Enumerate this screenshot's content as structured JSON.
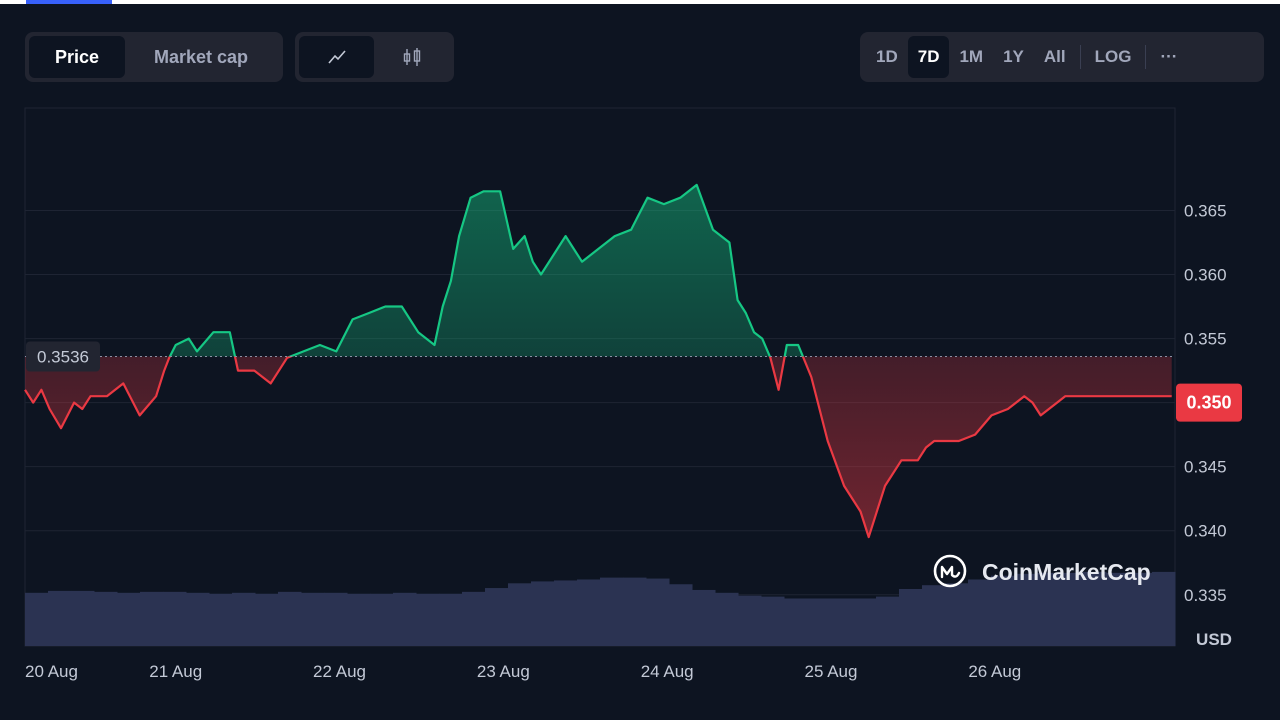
{
  "toolbar": {
    "metric_tabs": [
      {
        "label": "Price",
        "active": true
      },
      {
        "label": "Market cap",
        "active": false
      }
    ],
    "chart_types": [
      {
        "icon": "line-chart-icon",
        "active": true
      },
      {
        "icon": "candlestick-icon",
        "active": false
      }
    ],
    "ranges": [
      {
        "label": "1D",
        "active": false
      },
      {
        "label": "7D",
        "active": true
      },
      {
        "label": "1M",
        "active": false
      },
      {
        "label": "1Y",
        "active": false
      },
      {
        "label": "All",
        "active": false
      }
    ],
    "log_label": "LOG",
    "more_label": "···"
  },
  "watermark": "CoinMarketCap",
  "colors": {
    "up": "#16c784",
    "down": "#ea3943",
    "background": "#0d1421",
    "volume": "#2b3352",
    "current_badge": "#ea3943"
  },
  "chart_data": {
    "type": "area",
    "currency_label": "USD",
    "baseline_value": 0.3536,
    "baseline_label": "0.3536",
    "current_value": 0.35,
    "current_label": "0.350",
    "ylim": [
      0.331,
      0.373
    ],
    "y_ticks": [
      0.365,
      0.36,
      0.355,
      0.35,
      0.345,
      0.34,
      0.335
    ],
    "y_tick_labels": [
      "0.365",
      "0.360",
      "0.355",
      "0.350",
      "0.345",
      "0.340",
      "0.335"
    ],
    "xlim": [
      0,
      7.02
    ],
    "x_ticks": [
      0,
      0.92,
      1.92,
      2.92,
      3.92,
      4.92,
      5.92
    ],
    "x_tick_labels": [
      "20 Aug",
      "21 Aug",
      "22 Aug",
      "23 Aug",
      "24 Aug",
      "25 Aug",
      "26 Aug"
    ],
    "series": [
      {
        "x": [
          0,
          0.05,
          0.1,
          0.15,
          0.22,
          0.3,
          0.35,
          0.4,
          0.5,
          0.6,
          0.7,
          0.8,
          0.85,
          0.88,
          0.92,
          1.0,
          1.05,
          1.15,
          1.25,
          1.3,
          1.4,
          1.5,
          1.6,
          1.7,
          1.8,
          1.9,
          2.0,
          2.1,
          2.2,
          2.3,
          2.4,
          2.5,
          2.55,
          2.6,
          2.65,
          2.72,
          2.8,
          2.9,
          2.98,
          3.05,
          3.1,
          3.15,
          3.25,
          3.3,
          3.4,
          3.5,
          3.6,
          3.7,
          3.8,
          3.9,
          4.0,
          4.1,
          4.2,
          4.3,
          4.35,
          4.4,
          4.45,
          4.5,
          4.55,
          4.6,
          4.65,
          4.72,
          4.8,
          4.85,
          4.9,
          5.0,
          5.1,
          5.15,
          5.25,
          5.35,
          5.45,
          5.5,
          5.55,
          5.7,
          5.8,
          5.9,
          6.0,
          6.05,
          6.1,
          6.15,
          6.2,
          6.25,
          6.3,
          6.35,
          6.4,
          6.5,
          6.6,
          6.7,
          6.8,
          6.9,
          7.0
        ],
        "y": [
          0.351,
          0.35,
          0.351,
          0.3495,
          0.348,
          0.35,
          0.3495,
          0.3505,
          0.3505,
          0.3515,
          0.349,
          0.3505,
          0.3525,
          0.3535,
          0.3545,
          0.355,
          0.354,
          0.3555,
          0.3555,
          0.3525,
          0.3525,
          0.3515,
          0.3535,
          0.354,
          0.3545,
          0.354,
          0.3565,
          0.357,
          0.3575,
          0.3575,
          0.3555,
          0.3545,
          0.3575,
          0.3595,
          0.363,
          0.366,
          0.3665,
          0.3665,
          0.362,
          0.363,
          0.361,
          0.36,
          0.362,
          0.363,
          0.361,
          0.362,
          0.363,
          0.3635,
          0.366,
          0.3655,
          0.366,
          0.367,
          0.3635,
          0.3625,
          0.358,
          0.357,
          0.3555,
          0.355,
          0.3535,
          0.351,
          0.3545,
          0.3545,
          0.352,
          0.3495,
          0.347,
          0.3435,
          0.3415,
          0.3395,
          0.3435,
          0.3455,
          0.3455,
          0.3465,
          0.347,
          0.347,
          0.3475,
          0.349,
          0.3495,
          0.35,
          0.3505,
          0.35,
          0.349,
          0.3495,
          0.35,
          0.3505,
          0.3505,
          0.3505,
          0.3505,
          0.3505,
          0.3505,
          0.3505,
          0.3505
        ]
      }
    ],
    "volume": [
      0.56,
      0.58,
      0.58,
      0.57,
      0.56,
      0.57,
      0.57,
      0.56,
      0.55,
      0.56,
      0.55,
      0.57,
      0.56,
      0.56,
      0.55,
      0.55,
      0.56,
      0.55,
      0.55,
      0.57,
      0.61,
      0.66,
      0.68,
      0.69,
      0.7,
      0.72,
      0.72,
      0.71,
      0.65,
      0.59,
      0.56,
      0.53,
      0.52,
      0.5,
      0.5,
      0.5,
      0.5,
      0.52,
      0.6,
      0.64,
      0.66,
      0.7,
      0.74,
      0.76,
      0.77,
      0.77,
      0.78,
      0.77,
      0.77,
      0.78
    ]
  }
}
